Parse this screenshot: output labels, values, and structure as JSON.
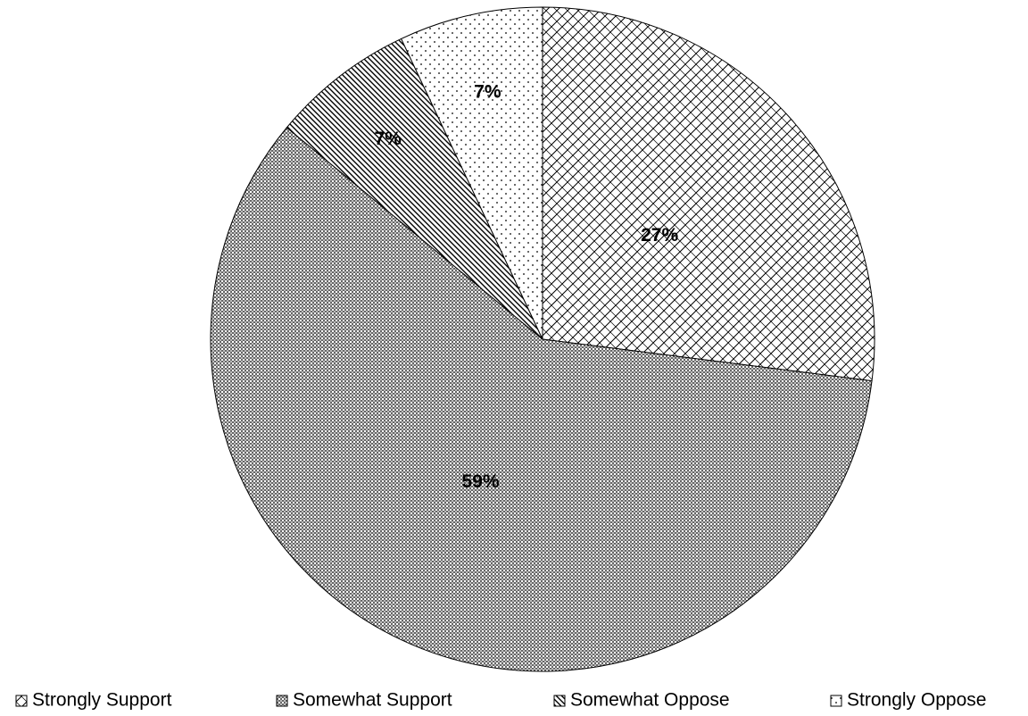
{
  "chart_data": {
    "type": "pie",
    "categories": [
      "Strongly Support",
      "Somewhat Support",
      "Somewhat Oppose",
      "Strongly Oppose"
    ],
    "values": [
      27,
      59,
      7,
      7
    ],
    "value_labels": [
      "27%",
      "59%",
      "7%",
      "7%"
    ],
    "legend": "bottom"
  }
}
